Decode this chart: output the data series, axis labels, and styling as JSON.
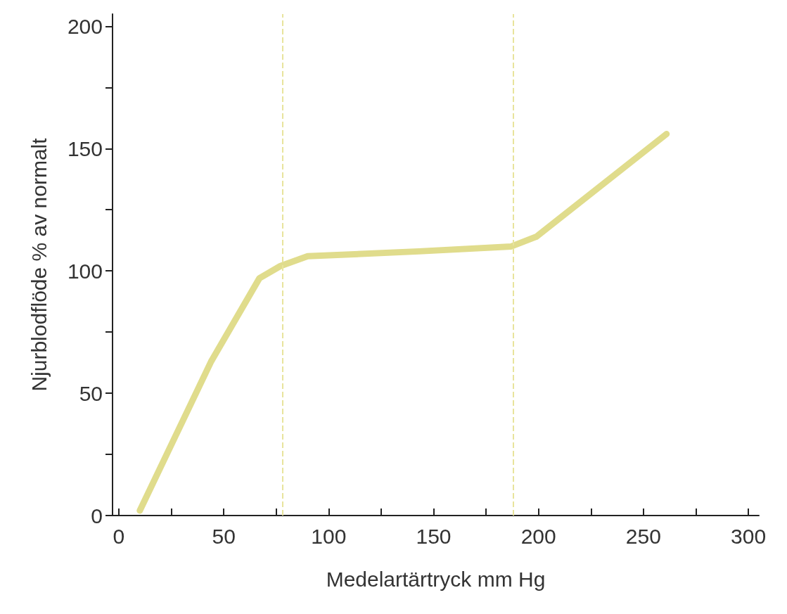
{
  "chart_data": {
    "type": "line",
    "xlabel": "Medelartärtryck mm Hg",
    "ylabel": "Njurblodflöde % av normalt",
    "x": [
      10,
      44,
      67,
      77,
      90,
      143,
      187,
      199,
      261
    ],
    "series": [
      {
        "color": "#e0dc8c",
        "values": [
          2,
          63,
          97,
          102,
          106,
          108,
          110,
          114,
          156
        ]
      }
    ],
    "xlim": [
      -3,
      305
    ],
    "ylim": [
      0,
      205
    ],
    "xticks": [
      0,
      {
        "value": 25,
        "label": null
      },
      50,
      {
        "value": 75,
        "label": null
      },
      100,
      {
        "value": 125,
        "label": null
      },
      150,
      {
        "value": 175,
        "label": null
      },
      200,
      {
        "value": 225,
        "label": null
      },
      250,
      {
        "value": 275,
        "label": null
      },
      300
    ],
    "yticks": [
      0,
      {
        "value": 25,
        "label": null
      },
      50,
      {
        "value": 75,
        "label": null
      },
      100,
      {
        "value": 125,
        "label": null
      },
      150,
      {
        "value": 175,
        "label": null
      },
      200
    ],
    "ref_lines": [
      {
        "axis": "x",
        "value": 78,
        "color": "#e8e49c",
        "line_style": "dashed"
      },
      {
        "axis": "x",
        "value": 188,
        "color": "#e8e49c",
        "line_style": "dashed"
      }
    ],
    "grid": false,
    "line_style": "solid"
  }
}
